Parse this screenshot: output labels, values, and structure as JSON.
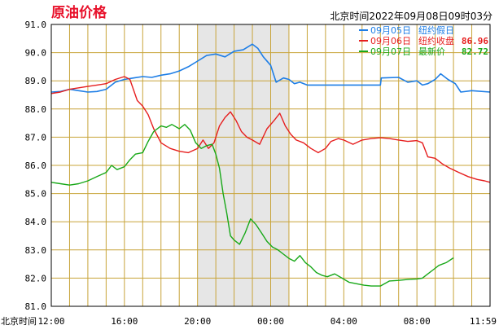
{
  "header": {
    "title": "原油价格",
    "info": "北京时间2022年09月08日09时03分"
  },
  "chart_data": {
    "type": "line",
    "x_unit": "Beijing time (hours from 12:00 on each day)",
    "xlim_hours": [
      0,
      24
    ],
    "ylim": [
      81.0,
      91.0
    ],
    "y_ticks": [
      "91.0",
      "90.0",
      "89.0",
      "88.0",
      "87.0",
      "86.0",
      "85.0",
      "84.0",
      "83.0",
      "82.0",
      "81.0"
    ],
    "x_axis_title": "北京时间",
    "x_ticks": [
      {
        "label": "12:00",
        "h": 0
      },
      {
        "label": "16:00",
        "h": 4
      },
      {
        "label": "20:00",
        "h": 8
      },
      {
        "label": "00:00",
        "h": 12
      },
      {
        "label": "04:00",
        "h": 16
      },
      {
        "label": "08:00",
        "h": 20
      },
      {
        "label": "11:59",
        "h": 24
      }
    ],
    "shaded_range_hours": [
      8,
      13
    ],
    "grid": true,
    "colors": {
      "grid": "#c8a43a",
      "frame": "#000000",
      "shade": "#e6e6e6"
    },
    "series": [
      {
        "name": "09月05日",
        "label": "纽约假日",
        "value": "",
        "color": "#1e7ee6",
        "points": [
          [
            0.0,
            88.6
          ],
          [
            0.5,
            88.62
          ],
          [
            1.0,
            88.7
          ],
          [
            1.5,
            88.65
          ],
          [
            2.0,
            88.6
          ],
          [
            2.5,
            88.62
          ],
          [
            3.0,
            88.7
          ],
          [
            3.5,
            88.95
          ],
          [
            4.0,
            89.05
          ],
          [
            4.5,
            89.1
          ],
          [
            5.0,
            89.15
          ],
          [
            5.5,
            89.12
          ],
          [
            6.0,
            89.2
          ],
          [
            6.5,
            89.25
          ],
          [
            7.0,
            89.35
          ],
          [
            7.5,
            89.5
          ],
          [
            8.0,
            89.7
          ],
          [
            8.5,
            89.9
          ],
          [
            9.0,
            89.95
          ],
          [
            9.5,
            89.85
          ],
          [
            10.0,
            90.05
          ],
          [
            10.5,
            90.1
          ],
          [
            11.0,
            90.3
          ],
          [
            11.3,
            90.15
          ],
          [
            11.6,
            89.85
          ],
          [
            12.0,
            89.55
          ],
          [
            12.3,
            88.95
          ],
          [
            12.7,
            89.1
          ],
          [
            13.0,
            89.05
          ],
          [
            13.3,
            88.9
          ],
          [
            13.6,
            88.95
          ],
          [
            14.0,
            88.85
          ],
          [
            14.5,
            88.85
          ],
          [
            15.5,
            88.85
          ],
          [
            17.0,
            88.85
          ],
          [
            18.0,
            88.85
          ],
          [
            18.05,
            89.1
          ],
          [
            19.0,
            89.12
          ],
          [
            19.5,
            88.95
          ],
          [
            20.0,
            89.0
          ],
          [
            20.3,
            88.85
          ],
          [
            20.6,
            88.9
          ],
          [
            21.0,
            89.05
          ],
          [
            21.3,
            89.25
          ],
          [
            21.7,
            89.05
          ],
          [
            22.1,
            88.9
          ],
          [
            22.4,
            88.6
          ],
          [
            23.0,
            88.65
          ],
          [
            24.0,
            88.6
          ]
        ]
      },
      {
        "name": "09月06日",
        "label": "纽约收盘",
        "value": "86.96",
        "color": "#e61e1e",
        "points": [
          [
            0.0,
            88.55
          ],
          [
            0.5,
            88.6
          ],
          [
            1.0,
            88.7
          ],
          [
            1.5,
            88.75
          ],
          [
            2.0,
            88.8
          ],
          [
            2.5,
            88.85
          ],
          [
            3.0,
            88.9
          ],
          [
            3.5,
            89.05
          ],
          [
            4.0,
            89.15
          ],
          [
            4.3,
            89.05
          ],
          [
            4.7,
            88.3
          ],
          [
            5.0,
            88.1
          ],
          [
            5.3,
            87.8
          ],
          [
            5.6,
            87.3
          ],
          [
            6.0,
            86.8
          ],
          [
            6.5,
            86.6
          ],
          [
            7.0,
            86.5
          ],
          [
            7.5,
            86.45
          ],
          [
            8.0,
            86.6
          ],
          [
            8.3,
            86.9
          ],
          [
            8.6,
            86.6
          ],
          [
            8.9,
            86.8
          ],
          [
            9.2,
            87.4
          ],
          [
            9.5,
            87.7
          ],
          [
            9.8,
            87.9
          ],
          [
            10.1,
            87.6
          ],
          [
            10.4,
            87.2
          ],
          [
            10.7,
            87.0
          ],
          [
            11.0,
            86.9
          ],
          [
            11.4,
            86.75
          ],
          [
            11.8,
            87.3
          ],
          [
            12.2,
            87.6
          ],
          [
            12.5,
            87.85
          ],
          [
            12.8,
            87.4
          ],
          [
            13.1,
            87.1
          ],
          [
            13.4,
            86.9
          ],
          [
            13.8,
            86.8
          ],
          [
            14.2,
            86.6
          ],
          [
            14.6,
            86.45
          ],
          [
            15.0,
            86.6
          ],
          [
            15.3,
            86.85
          ],
          [
            15.7,
            86.95
          ],
          [
            16.0,
            86.9
          ],
          [
            16.5,
            86.75
          ],
          [
            17.0,
            86.9
          ],
          [
            17.5,
            86.95
          ],
          [
            18.0,
            86.98
          ],
          [
            18.5,
            86.95
          ],
          [
            19.0,
            86.9
          ],
          [
            19.5,
            86.85
          ],
          [
            20.0,
            86.88
          ],
          [
            20.3,
            86.8
          ],
          [
            20.6,
            86.3
          ],
          [
            21.0,
            86.25
          ],
          [
            21.4,
            86.05
          ],
          [
            21.8,
            85.9
          ],
          [
            22.3,
            85.75
          ],
          [
            22.8,
            85.6
          ],
          [
            23.3,
            85.5
          ],
          [
            23.7,
            85.45
          ],
          [
            24.0,
            85.4
          ]
        ]
      },
      {
        "name": "09月07日",
        "label": "最新价",
        "value": "82.72",
        "color": "#18a818",
        "points": [
          [
            0.0,
            85.4
          ],
          [
            0.5,
            85.35
          ],
          [
            1.0,
            85.3
          ],
          [
            1.5,
            85.35
          ],
          [
            2.0,
            85.45
          ],
          [
            2.5,
            85.6
          ],
          [
            3.0,
            85.75
          ],
          [
            3.3,
            86.0
          ],
          [
            3.6,
            85.85
          ],
          [
            4.0,
            85.95
          ],
          [
            4.3,
            86.2
          ],
          [
            4.6,
            86.4
          ],
          [
            5.0,
            86.45
          ],
          [
            5.3,
            86.85
          ],
          [
            5.6,
            87.2
          ],
          [
            6.0,
            87.4
          ],
          [
            6.3,
            87.35
          ],
          [
            6.6,
            87.45
          ],
          [
            7.0,
            87.3
          ],
          [
            7.3,
            87.45
          ],
          [
            7.6,
            87.25
          ],
          [
            7.9,
            86.8
          ],
          [
            8.2,
            86.6
          ],
          [
            8.5,
            86.7
          ],
          [
            8.8,
            86.75
          ],
          [
            9.0,
            86.4
          ],
          [
            9.2,
            85.9
          ],
          [
            9.4,
            85.0
          ],
          [
            9.6,
            84.3
          ],
          [
            9.8,
            83.5
          ],
          [
            10.0,
            83.35
          ],
          [
            10.3,
            83.2
          ],
          [
            10.6,
            83.6
          ],
          [
            10.9,
            84.1
          ],
          [
            11.2,
            83.9
          ],
          [
            11.5,
            83.6
          ],
          [
            11.8,
            83.3
          ],
          [
            12.1,
            83.1
          ],
          [
            12.4,
            83.0
          ],
          [
            12.7,
            82.85
          ],
          [
            13.0,
            82.7
          ],
          [
            13.3,
            82.6
          ],
          [
            13.6,
            82.8
          ],
          [
            13.9,
            82.55
          ],
          [
            14.2,
            82.4
          ],
          [
            14.5,
            82.2
          ],
          [
            14.8,
            82.1
          ],
          [
            15.1,
            82.05
          ],
          [
            15.5,
            82.15
          ],
          [
            15.9,
            82.0
          ],
          [
            16.3,
            81.85
          ],
          [
            16.7,
            81.8
          ],
          [
            17.1,
            81.75
          ],
          [
            17.5,
            81.72
          ],
          [
            18.0,
            81.72
          ],
          [
            18.5,
            81.9
          ],
          [
            19.0,
            81.92
          ],
          [
            19.5,
            81.95
          ],
          [
            20.0,
            81.97
          ],
          [
            20.3,
            82.0
          ],
          [
            20.6,
            82.15
          ],
          [
            20.9,
            82.3
          ],
          [
            21.2,
            82.45
          ],
          [
            21.6,
            82.55
          ],
          [
            22.0,
            82.72
          ]
        ]
      }
    ]
  }
}
